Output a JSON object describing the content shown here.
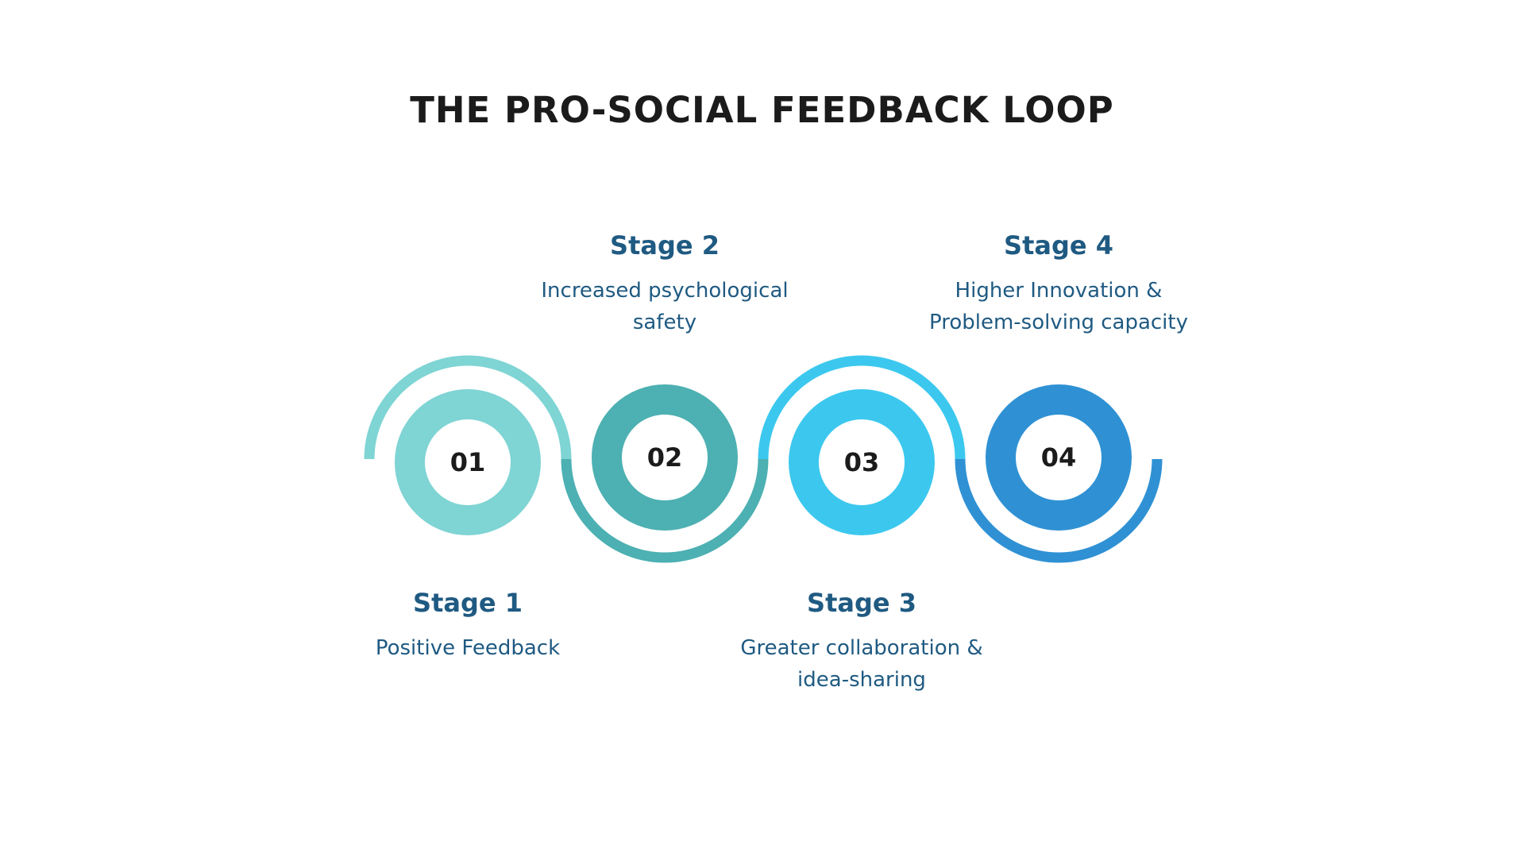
{
  "title": "THE PRO-SOCIAL FEEDBACK LOOP",
  "stages": [
    {
      "number": "01",
      "label": "Stage 1",
      "desc_lines": [
        "Positive Feedback"
      ],
      "color": "#7fd4d4"
    },
    {
      "number": "02",
      "label": "Stage 2",
      "desc_lines": [
        "Increased psychological",
        "safety"
      ],
      "color": "#4db0b2"
    },
    {
      "number": "03",
      "label": "Stage 3",
      "desc_lines": [
        "Greater collaboration &",
        "idea-sharing"
      ],
      "color": "#3cc8ee"
    },
    {
      "number": "04",
      "label": "Stage 4",
      "desc_lines": [
        "Higher Innovation &",
        "Problem-solving capacity"
      ],
      "color": "#2f91d4"
    }
  ]
}
